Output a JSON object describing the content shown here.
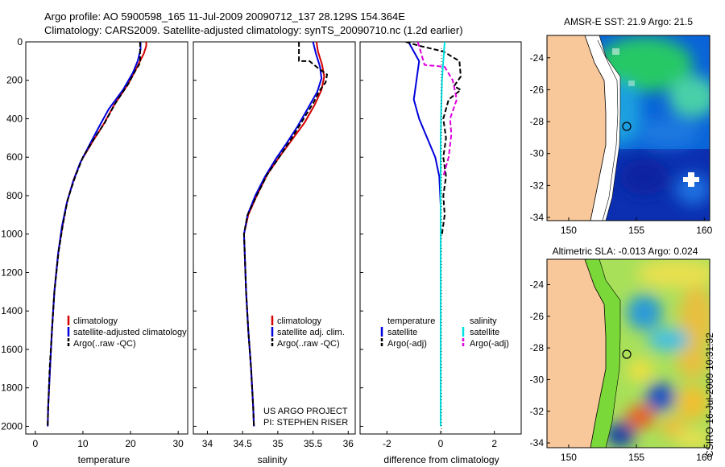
{
  "figure": {
    "title_line1": "Argo profile: AO 5900598_165 11-Jul-2009 20090712_137 28.129S 154.364E",
    "title_line2": "Climatology: CARS2009. Satellite-adjusted climatology: synTS_20090710.nc (1.2d earlier)",
    "credit": "CSIRO 16-Jul-2009 10:31:32",
    "project_line1": "US ARGO PROJECT",
    "project_line2": "PI: STEPHEN RISER"
  },
  "colors": {
    "climatology": "#d40000",
    "satellite": "#0000dd",
    "argo": "#000000",
    "salinity_satellite": "#00e0e0",
    "argo_adj": "#dd00dd",
    "land": "#f8c89a"
  },
  "chart_data": [
    {
      "type": "line",
      "xlabel": "temperature",
      "ylabel": "",
      "xlim": [
        -2,
        32
      ],
      "ylim": [
        2040,
        0
      ],
      "xticks": [
        "0",
        "10",
        "20",
        "30"
      ],
      "yticks": [
        "0",
        "200",
        "400",
        "600",
        "800",
        "1000",
        "1200",
        "1400",
        "1600",
        "1800",
        "2000"
      ],
      "legend": {
        "placement": "lower-left",
        "entries": [
          "climatology",
          "satellite-adjusted climatology",
          "Argo(..raw -QC)"
        ]
      },
      "series": [
        {
          "name": "climatology",
          "color": "red",
          "points": [
            [
              23.3,
              0
            ],
            [
              23.3,
              20
            ],
            [
              22.8,
              60
            ],
            [
              21.6,
              120
            ],
            [
              19.5,
              220
            ],
            [
              16.5,
              330
            ],
            [
              14.3,
              430
            ],
            [
              12.0,
              520
            ],
            [
              9.6,
              620
            ],
            [
              8.0,
              720
            ],
            [
              6.6,
              840
            ],
            [
              5.7,
              960
            ],
            [
              4.8,
              1100
            ],
            [
              4.0,
              1300
            ],
            [
              3.5,
              1500
            ],
            [
              3.1,
              1700
            ],
            [
              2.7,
              1900
            ],
            [
              2.6,
              2000
            ]
          ]
        },
        {
          "name": "satellite-adjusted climatology",
          "color": "blue",
          "points": [
            [
              22.1,
              0
            ],
            [
              22.1,
              40
            ],
            [
              21.5,
              100
            ],
            [
              20.5,
              160
            ],
            [
              18.4,
              250
            ],
            [
              15.4,
              350
            ],
            [
              13.2,
              450
            ],
            [
              11.3,
              540
            ],
            [
              9.4,
              630
            ],
            [
              7.9,
              730
            ],
            [
              6.6,
              840
            ],
            [
              5.6,
              960
            ],
            [
              4.8,
              1100
            ],
            [
              4.0,
              1300
            ],
            [
              3.5,
              1500
            ],
            [
              3.1,
              1700
            ],
            [
              2.7,
              1900
            ],
            [
              2.6,
              2000
            ]
          ]
        },
        {
          "name": "Argo(..raw -QC)",
          "color": "black",
          "dashed": true,
          "points": [
            [
              22.0,
              0
            ],
            [
              22.0,
              110
            ],
            [
              21.0,
              150
            ],
            [
              19.5,
              220
            ],
            [
              16.8,
              320
            ],
            [
              14.6,
              420
            ],
            [
              12.2,
              510
            ],
            [
              10.0,
              600
            ],
            [
              8.4,
              700
            ],
            [
              6.8,
              820
            ],
            [
              5.8,
              950
            ],
            [
              4.9,
              1090
            ],
            [
              4.0,
              1300
            ],
            [
              3.5,
              1500
            ],
            [
              3.0,
              1700
            ],
            [
              2.7,
              1900
            ],
            [
              2.6,
              2000
            ]
          ]
        }
      ]
    },
    {
      "type": "line",
      "xlabel": "salinity",
      "ylabel": "",
      "xlim": [
        33.8,
        36.1
      ],
      "ylim": [
        2040,
        0
      ],
      "xticks": [
        "34",
        "34.5",
        "35",
        "35.5",
        "36"
      ],
      "legend": {
        "placement": "lower-left",
        "entries": [
          "climatology",
          "satellite adj. clim.",
          "Argo(..raw -QC)"
        ]
      },
      "series": [
        {
          "name": "climatology",
          "color": "red",
          "points": [
            [
              35.55,
              0
            ],
            [
              35.57,
              50
            ],
            [
              35.63,
              120
            ],
            [
              35.66,
              180
            ],
            [
              35.62,
              250
            ],
            [
              35.52,
              330
            ],
            [
              35.38,
              420
            ],
            [
              35.2,
              510
            ],
            [
              35.02,
              600
            ],
            [
              34.85,
              690
            ],
            [
              34.7,
              800
            ],
            [
              34.58,
              900
            ],
            [
              34.52,
              1000
            ],
            [
              34.53,
              1100
            ],
            [
              34.55,
              1300
            ],
            [
              34.58,
              1500
            ],
            [
              34.62,
              1700
            ],
            [
              34.65,
              1900
            ],
            [
              34.66,
              2000
            ]
          ]
        },
        {
          "name": "satellite adj. clim.",
          "color": "blue",
          "points": [
            [
              35.5,
              0
            ],
            [
              35.54,
              60
            ],
            [
              35.6,
              130
            ],
            [
              35.62,
              190
            ],
            [
              35.56,
              260
            ],
            [
              35.42,
              350
            ],
            [
              35.28,
              440
            ],
            [
              35.12,
              530
            ],
            [
              34.97,
              610
            ],
            [
              34.82,
              700
            ],
            [
              34.68,
              800
            ],
            [
              34.57,
              900
            ],
            [
              34.52,
              1000
            ],
            [
              34.53,
              1100
            ],
            [
              34.55,
              1300
            ],
            [
              34.58,
              1500
            ],
            [
              34.62,
              1700
            ],
            [
              34.65,
              1900
            ],
            [
              34.66,
              2000
            ]
          ]
        },
        {
          "name": "Argo(..raw -QC)",
          "color": "black",
          "dashed": true,
          "points": [
            [
              35.3,
              0
            ],
            [
              35.3,
              100
            ],
            [
              35.45,
              100
            ],
            [
              35.55,
              130
            ],
            [
              35.7,
              170
            ],
            [
              35.68,
              210
            ],
            [
              35.6,
              250
            ],
            [
              35.5,
              320
            ],
            [
              35.35,
              410
            ],
            [
              35.2,
              500
            ],
            [
              35.02,
              600
            ],
            [
              34.85,
              690
            ],
            [
              34.7,
              800
            ],
            [
              34.57,
              900
            ],
            [
              34.52,
              1000
            ],
            [
              34.53,
              1100
            ],
            [
              34.55,
              1300
            ],
            [
              34.58,
              1500
            ],
            [
              34.62,
              1700
            ],
            [
              34.65,
              1900
            ],
            [
              34.66,
              2000
            ]
          ]
        }
      ]
    },
    {
      "type": "line",
      "xlabel": "difference from climatology",
      "ylabel": "",
      "xlim": [
        -3,
        3
      ],
      "ylim": [
        2040,
        0
      ],
      "xticks": [
        "-2",
        "0",
        "2"
      ],
      "legend": {
        "placement": "lower-left",
        "headers": [
          "temperature",
          "salinity"
        ],
        "entries": [
          "satellite",
          "Argo(-adj)",
          "satellite",
          "Argo(-adj)"
        ]
      },
      "series": [
        {
          "name": "satellite",
          "group": "temperature",
          "color": "blue",
          "points": [
            [
              -1.2,
              0
            ],
            [
              -0.8,
              100
            ],
            [
              -0.9,
              200
            ],
            [
              -1.0,
              300
            ],
            [
              -0.8,
              400
            ],
            [
              -0.5,
              500
            ],
            [
              -0.2,
              600
            ],
            [
              -0.05,
              700
            ],
            [
              0,
              850
            ],
            [
              0,
              2000
            ]
          ]
        },
        {
          "name": "Argo(-adj)",
          "group": "temperature",
          "color": "black",
          "dashed": true,
          "points": [
            [
              -1.3,
              0
            ],
            [
              -0.8,
              20
            ],
            [
              0.1,
              50
            ],
            [
              0.7,
              100
            ],
            [
              0.75,
              180
            ],
            [
              0.5,
              230
            ],
            [
              0.75,
              250
            ],
            [
              0.3,
              300
            ],
            [
              0.1,
              400
            ],
            [
              0.2,
              500
            ],
            [
              0.1,
              600
            ],
            [
              0.2,
              700
            ],
            [
              0.1,
              800
            ],
            [
              0.15,
              900
            ],
            [
              0.05,
              1000
            ]
          ]
        },
        {
          "name": "satellite",
          "group": "salinity",
          "color": "cyan",
          "points": [
            [
              0.15,
              0
            ],
            [
              0.1,
              100
            ],
            [
              0.05,
              200
            ],
            [
              0.02,
              350
            ],
            [
              0,
              500
            ],
            [
              0,
              2000
            ]
          ]
        },
        {
          "name": "Argo(-adj)",
          "group": "salinity",
          "color": "magenta",
          "dashed": true,
          "points": [
            [
              -0.85,
              0
            ],
            [
              -0.6,
              120
            ],
            [
              0.15,
              130
            ],
            [
              0.45,
              200
            ],
            [
              0.6,
              300
            ],
            [
              0.35,
              400
            ],
            [
              0.4,
              480
            ],
            [
              0.3,
              600
            ],
            [
              0.1,
              700
            ]
          ]
        }
      ]
    }
  ],
  "maps": [
    {
      "title": "AMSR-E SST: 21.9 Argo: 21.5",
      "xticks": [
        "150",
        "155",
        "160"
      ],
      "yticks": [
        "-24",
        "-26",
        "-28",
        "-30",
        "-32",
        "-34"
      ]
    },
    {
      "title": "Altimetric SLA: -0.013 Argo: 0.024",
      "xticks": [
        "150",
        "155",
        "160"
      ],
      "yticks": [
        "-24",
        "-26",
        "-28",
        "-30",
        "-32",
        "-34"
      ]
    }
  ]
}
